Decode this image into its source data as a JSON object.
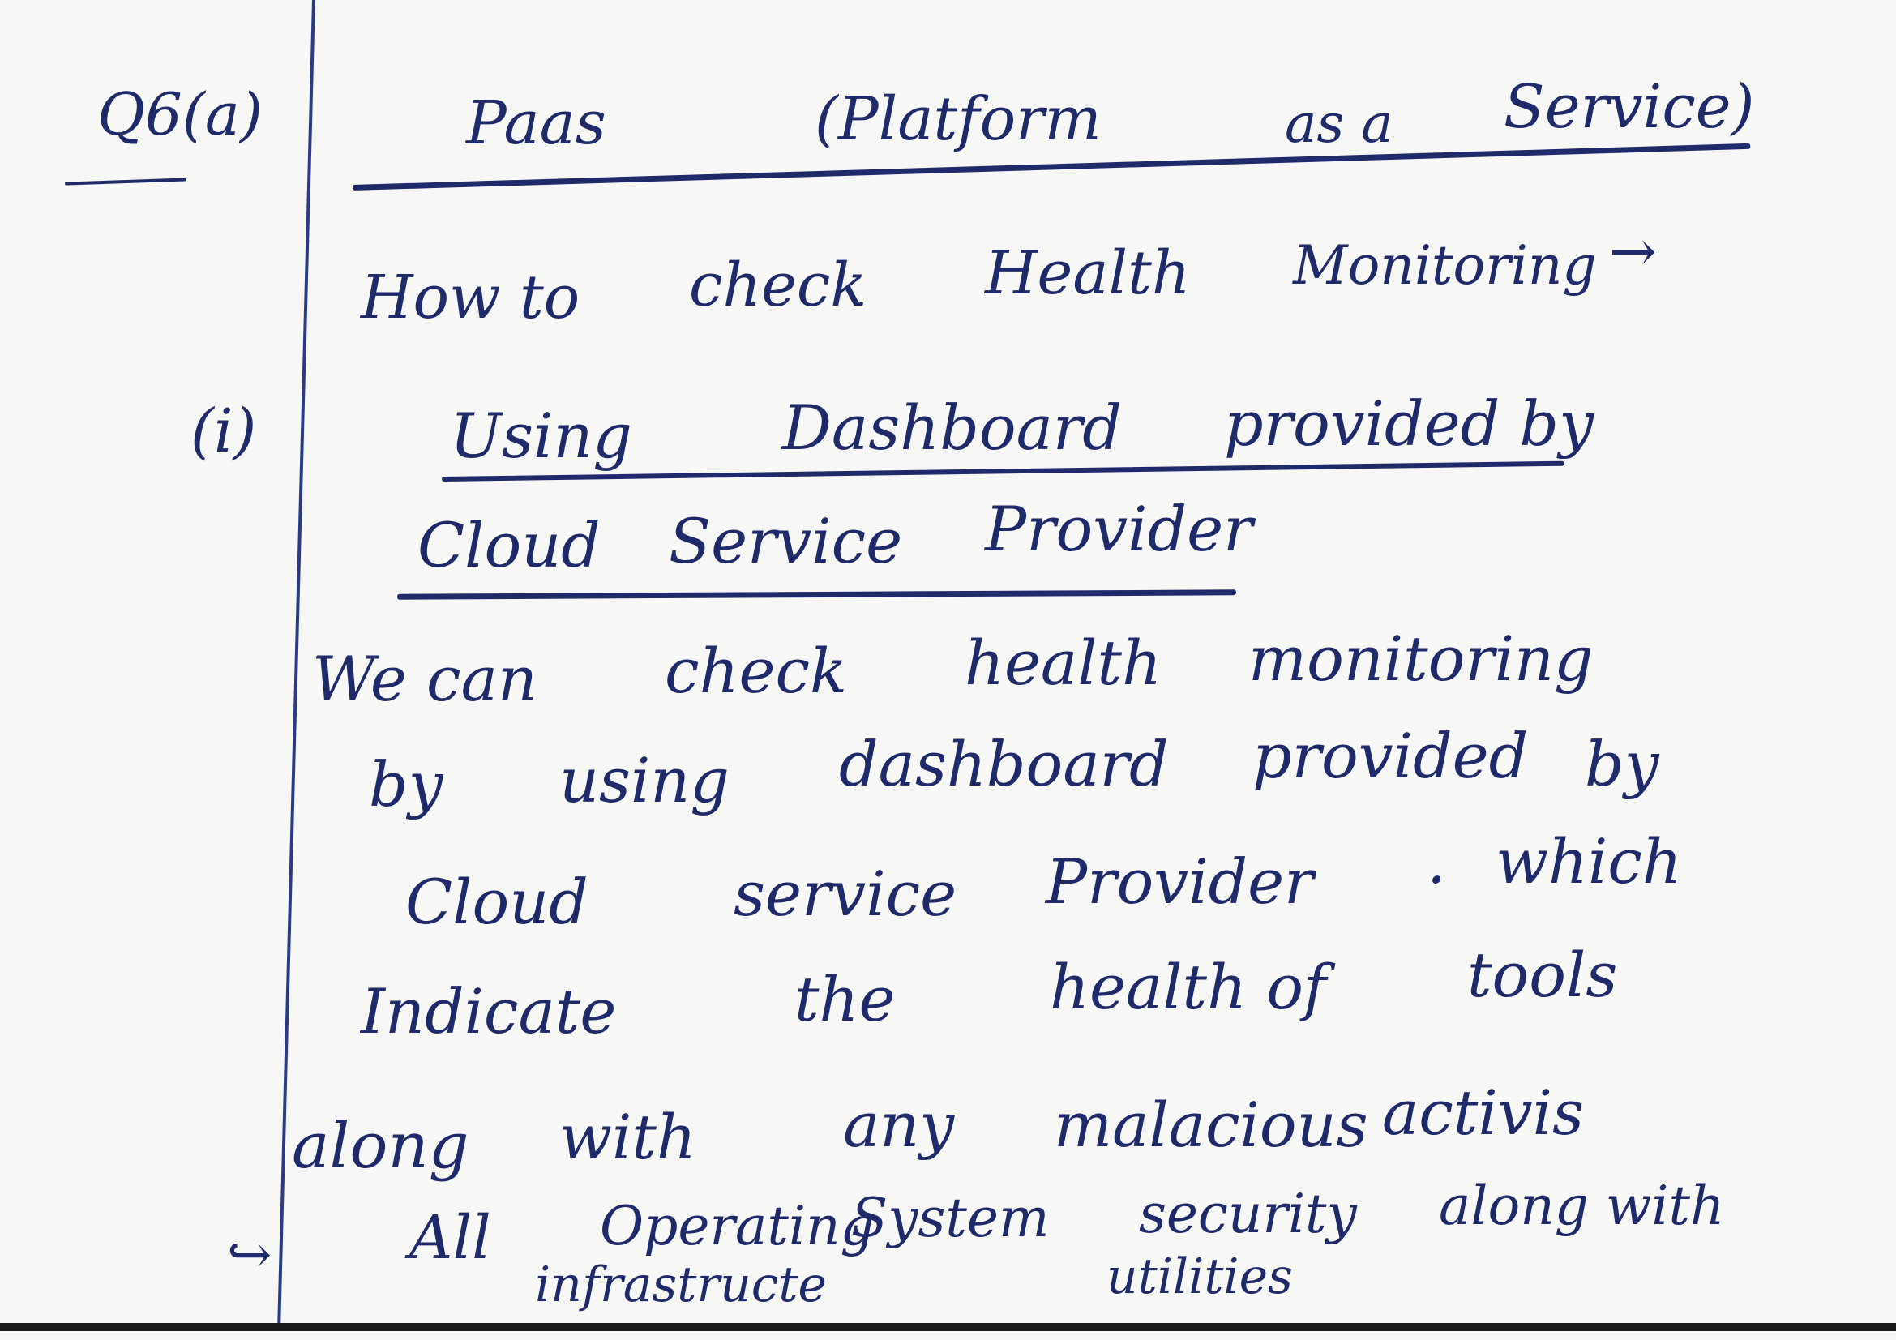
{
  "question": {
    "label": "Q6(a)"
  },
  "title": {
    "w1": "Paas",
    "w2": "(Platform",
    "w3": "as a",
    "w4": "Service)"
  },
  "heading": {
    "w1": "How to",
    "w2": "check",
    "w3": "Health",
    "w4": "Monitoring",
    "arrow": "→"
  },
  "point1": {
    "number": "(i)",
    "line1_w1": "Using",
    "line1_w2": "Dashboard",
    "line1_w3": "provided by",
    "line2_w1": "Cloud",
    "line2_w2": "Service",
    "line2_w3": "Provider"
  },
  "body": {
    "l1_w1": "We can",
    "l1_w2": "check",
    "l1_w3": "health",
    "l1_w4": "monitoring",
    "l2_w1": "by",
    "l2_w2": "using",
    "l2_w3": "dashboard",
    "l2_w4": "provided",
    "l2_w5": "by",
    "l3_w1": "Cloud",
    "l3_w2": "service",
    "l3_w3": "Provider",
    "l3_w4": ".",
    "l3_w5": "which",
    "l4_w1": "Indicate",
    "l4_w2": "the",
    "l4_w3": "health of",
    "l4_w4": "tools",
    "l5_w1": "along",
    "l5_w2": "with",
    "l5_w3": "any",
    "l5_w4": "malacious",
    "l5_w5": "activis"
  },
  "final": {
    "arrow": "↪",
    "w1": "All",
    "w2": "Operating",
    "w3": "System",
    "w4": "security",
    "w5": "along with",
    "w6": "infrastructe",
    "w7": "utilities"
  }
}
